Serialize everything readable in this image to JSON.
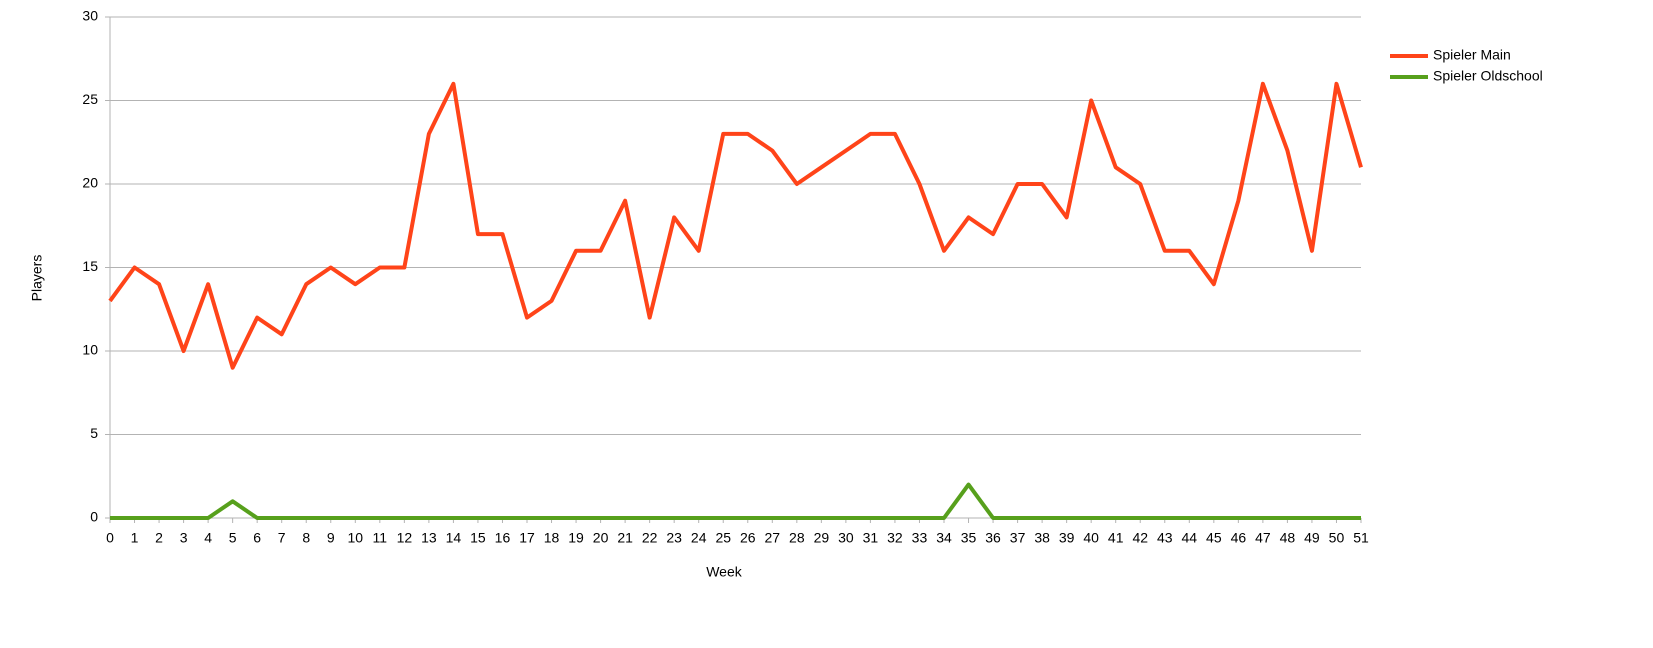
{
  "chart_data": {
    "type": "line",
    "x_label": "Week",
    "y_label": "Players",
    "x": [
      0,
      1,
      2,
      3,
      4,
      5,
      6,
      7,
      8,
      9,
      10,
      11,
      12,
      13,
      14,
      15,
      16,
      17,
      18,
      19,
      20,
      21,
      22,
      23,
      24,
      25,
      26,
      27,
      28,
      29,
      30,
      31,
      32,
      33,
      34,
      35,
      36,
      37,
      38,
      39,
      40,
      41,
      42,
      43,
      44,
      45,
      46,
      47,
      48,
      49,
      50,
      51
    ],
    "series": [
      {
        "name": "Spieler Main",
        "color": "#ff4419",
        "values": [
          13,
          15,
          14,
          10,
          14,
          9,
          12,
          11,
          14,
          15,
          14,
          15,
          15,
          23,
          26,
          17,
          17,
          12,
          13,
          16,
          16,
          19,
          12,
          18,
          16,
          23,
          23,
          22,
          20,
          21,
          22,
          23,
          23,
          20,
          16,
          18,
          17,
          20,
          20,
          18,
          25,
          21,
          20,
          16,
          16,
          14,
          19,
          26,
          22,
          16,
          26,
          21
        ]
      },
      {
        "name": "Spieler Oldschool",
        "color": "#57a01c",
        "values": [
          0,
          0,
          0,
          0,
          0,
          1,
          0,
          0,
          0,
          0,
          0,
          0,
          0,
          0,
          0,
          0,
          0,
          0,
          0,
          0,
          0,
          0,
          0,
          0,
          0,
          0,
          0,
          0,
          0,
          0,
          0,
          0,
          0,
          0,
          0,
          2,
          0,
          0,
          0,
          0,
          0,
          0,
          0,
          0,
          0,
          0,
          0,
          0,
          0,
          0,
          0,
          0
        ]
      }
    ],
    "xlim": [
      0,
      51
    ],
    "ylim": [
      0,
      30
    ],
    "yticks": [
      0,
      5,
      10,
      15,
      20,
      25,
      30
    ],
    "grid": true,
    "legend": "right"
  }
}
